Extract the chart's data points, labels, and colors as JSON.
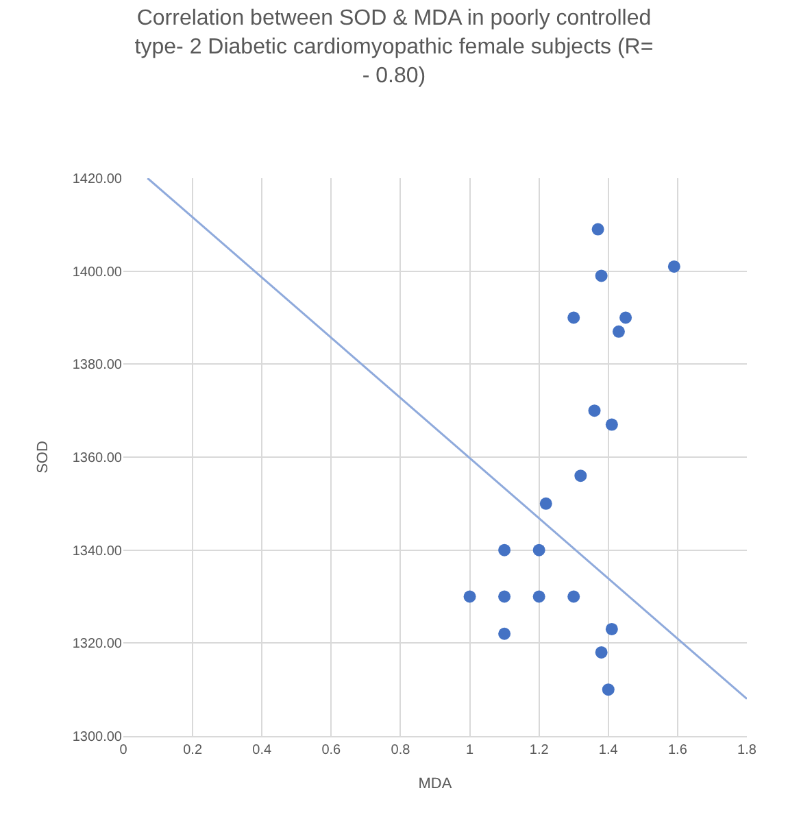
{
  "chart_data": {
    "type": "scatter",
    "title": "Correlation between SOD & MDA in poorly controlled type- 2 Diabetic cardiomyopathic female subjects (R= - 0.80)",
    "xlabel": "MDA",
    "ylabel": "SOD",
    "xlim": [
      0,
      1.8
    ],
    "xticks": [
      0,
      0.2,
      0.4,
      0.6,
      0.8,
      1,
      1.2,
      1.4,
      1.6,
      1.8
    ],
    "ylim": [
      1300,
      1420
    ],
    "yticks": [
      {
        "value": 1300,
        "label": "1300.00"
      },
      {
        "value": 1320,
        "label": "1320.00"
      },
      {
        "value": 1340,
        "label": "1340.00"
      },
      {
        "value": 1360,
        "label": "1360.00"
      },
      {
        "value": 1380,
        "label": "1380.00"
      },
      {
        "value": 1400,
        "label": "1400.00"
      },
      {
        "value": 1420,
        "label": "1420.00"
      }
    ],
    "grid": true,
    "series": [
      {
        "marker": "circle",
        "color": "#4472c4",
        "x": [
          1.37,
          1.59,
          1.38,
          1.3,
          1.45,
          1.43,
          1.36,
          1.41,
          1.32,
          1.22,
          1.1,
          1.2,
          1.0,
          1.1,
          1.2,
          1.3,
          1.41,
          1.1,
          1.38,
          1.4
        ],
        "values": [
          1409,
          1401,
          1399,
          1390,
          1390,
          1387,
          1370,
          1367,
          1356,
          1350,
          1340,
          1340,
          1330,
          1330,
          1330,
          1330,
          1323,
          1322,
          1318,
          1310
        ]
      },
      {
        "type": "line",
        "color": "#8faadc",
        "x": [
          0.07,
          1.8
        ],
        "values": [
          1420,
          1308
        ],
        "line_style": "solid"
      }
    ]
  }
}
